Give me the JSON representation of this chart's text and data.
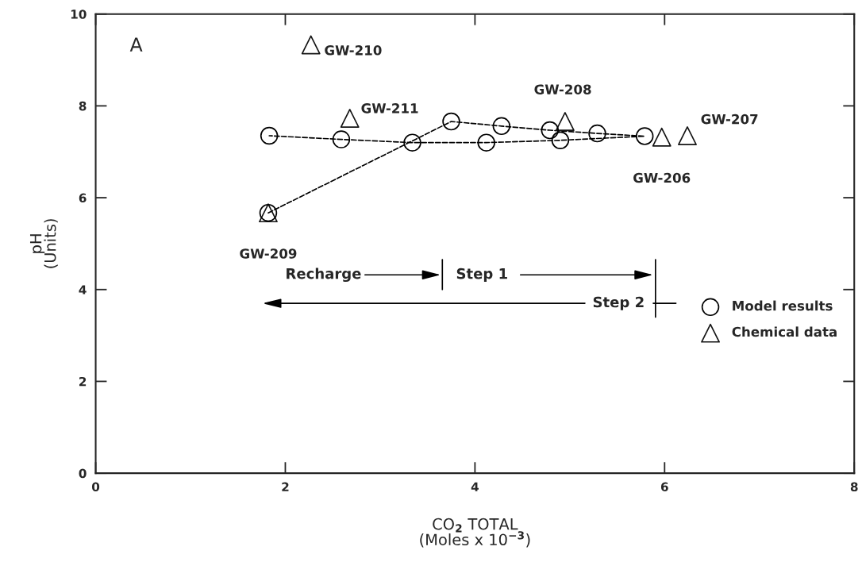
{
  "chart_data": {
    "type": "scatter",
    "xlabel": "CO$_{2}$ TOTAL\n(Moles x 10$^{−3}$)",
    "ylabel": "pH\n(Units)",
    "xlim": [
      0,
      8
    ],
    "ylim": [
      0,
      10
    ],
    "xticks": [
      0,
      2,
      4,
      6,
      8
    ],
    "yticks": [
      0,
      2,
      4,
      6,
      8,
      10
    ],
    "grid": false,
    "legend": "bottom right",
    "series": [
      {
        "name": "Model results",
        "type": "line",
        "marker": "circle",
        "line_style": "dashed",
        "color": "#000000",
        "x": [
          1.82,
          3.75,
          4.28,
          4.79,
          5.29,
          5.79,
          4.9,
          4.12,
          3.34,
          2.59,
          1.83
        ],
        "values": [
          5.67,
          7.66,
          7.56,
          7.47,
          7.4,
          7.34,
          7.25,
          7.2,
          7.2,
          7.27,
          7.35
        ]
      },
      {
        "name": "Chemical data",
        "marker": "triangle",
        "color": "#141414",
        "x": [
          2.27,
          2.68,
          4.95,
          5.97,
          6.24,
          1.82
        ],
        "values": [
          9.33,
          7.73,
          7.66,
          7.32,
          7.35,
          5.67
        ]
      }
    ],
    "annotations": [
      {
        "text": "GW-210",
        "x": 2.27,
        "y": 9.33
      },
      {
        "text": "GW-211",
        "x": 2.68,
        "y": 7.73
      },
      {
        "text": "GW-208",
        "x": 4.95,
        "y": 7.66
      },
      {
        "text": "GW-206",
        "x": 5.97,
        "y": 7.32
      },
      {
        "text": "GW-207",
        "x": 6.24,
        "y": 7.35
      },
      {
        "text": "GW-209",
        "x": 1.82,
        "y": 5.67
      },
      "A",
      "Recharge",
      "Step 1",
      "Step 2"
    ]
  }
}
